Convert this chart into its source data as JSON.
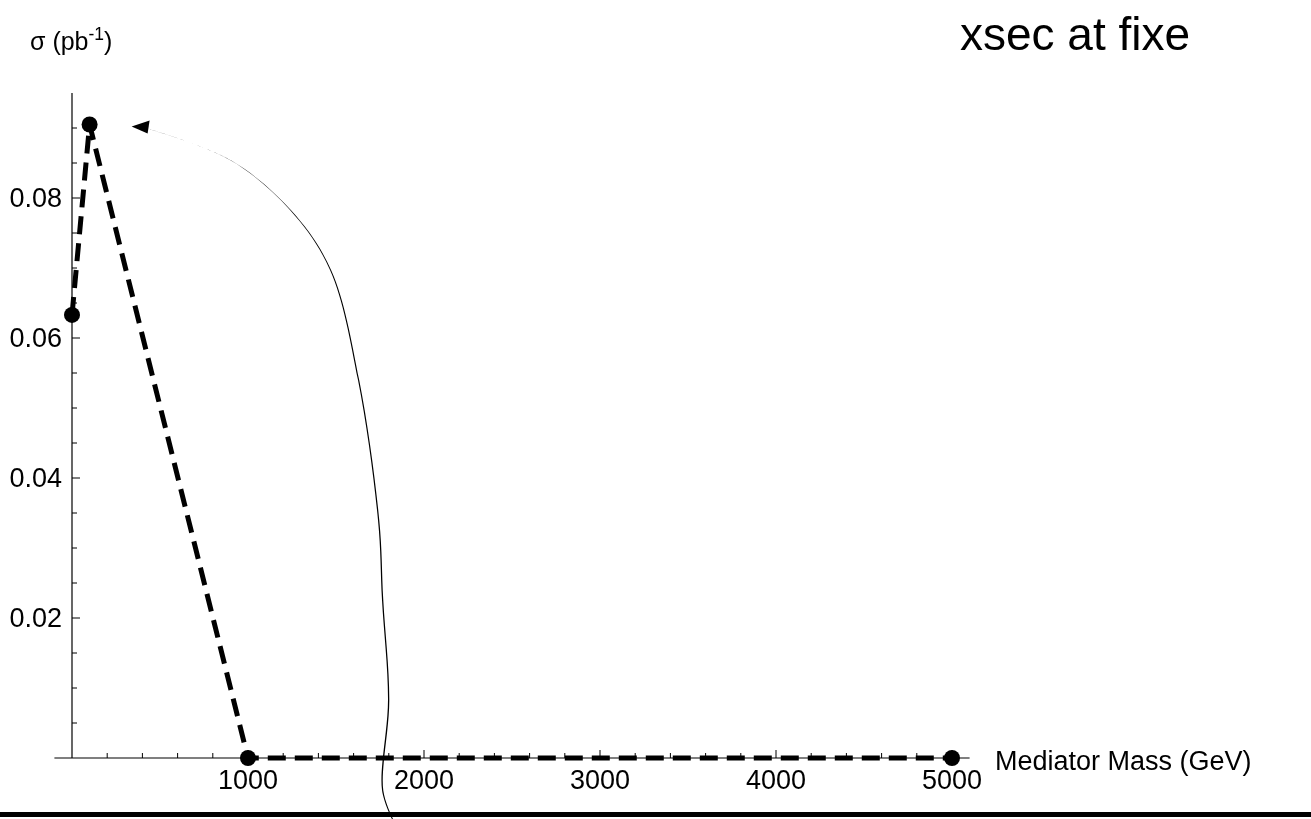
{
  "chart_data": {
    "type": "line",
    "title": "xsec at fixe",
    "xlabel": "Mediator Mass (GeV)",
    "ylabel": "σ (pb$^{-1}$)",
    "x": [
      0,
      100,
      1000,
      5000
    ],
    "series": [
      {
        "color": "#000000",
        "values": [
          0.0633,
          0.0905,
          0,
          0
        ]
      }
    ],
    "xlim": [
      -100,
      5100
    ],
    "ylim": [
      0,
      0.095
    ],
    "xticks": [
      {
        "value": 200,
        "label": null
      },
      {
        "value": 400,
        "label": null
      },
      {
        "value": 600,
        "label": null
      },
      {
        "value": 800,
        "label": null
      },
      1000,
      {
        "value": 1200,
        "label": null
      },
      {
        "value": 1400,
        "label": null
      },
      {
        "value": 1600,
        "label": null
      },
      {
        "value": 1800,
        "label": null
      },
      2000,
      {
        "value": 2200,
        "label": null
      },
      {
        "value": 2400,
        "label": null
      },
      {
        "value": 2600,
        "label": null
      },
      {
        "value": 2800,
        "label": null
      },
      3000,
      {
        "value": 3200,
        "label": null
      },
      {
        "value": 3400,
        "label": null
      },
      {
        "value": 3600,
        "label": null
      },
      {
        "value": 3800,
        "label": null
      },
      4000,
      {
        "value": 4200,
        "label": null
      },
      {
        "value": 4400,
        "label": null
      },
      {
        "value": 4600,
        "label": null
      },
      {
        "value": 4800,
        "label": null
      },
      5000
    ],
    "yticks": [
      {
        "value": 0.005,
        "label": null
      },
      {
        "value": 0.01,
        "label": null
      },
      {
        "value": 0.015,
        "label": null
      },
      {
        "value": 0.02,
        "label": "0.02"
      },
      {
        "value": 0.025,
        "label": null
      },
      {
        "value": 0.03,
        "label": null
      },
      {
        "value": 0.035,
        "label": null
      },
      {
        "value": 0.04,
        "label": "0.04"
      },
      {
        "value": 0.045,
        "label": null
      },
      {
        "value": 0.05,
        "label": null
      },
      {
        "value": 0.055,
        "label": null
      },
      {
        "value": 0.06,
        "label": "0.06"
      },
      {
        "value": 0.065,
        "label": null
      },
      {
        "value": 0.07,
        "label": null
      },
      {
        "value": 0.075,
        "label": null
      },
      {
        "value": 0.08,
        "label": "0.08"
      },
      {
        "value": 0.085,
        "label": null
      },
      {
        "value": 0.09,
        "label": null
      }
    ],
    "marker": "circle",
    "line_style": "dashed",
    "grid": false
  }
}
